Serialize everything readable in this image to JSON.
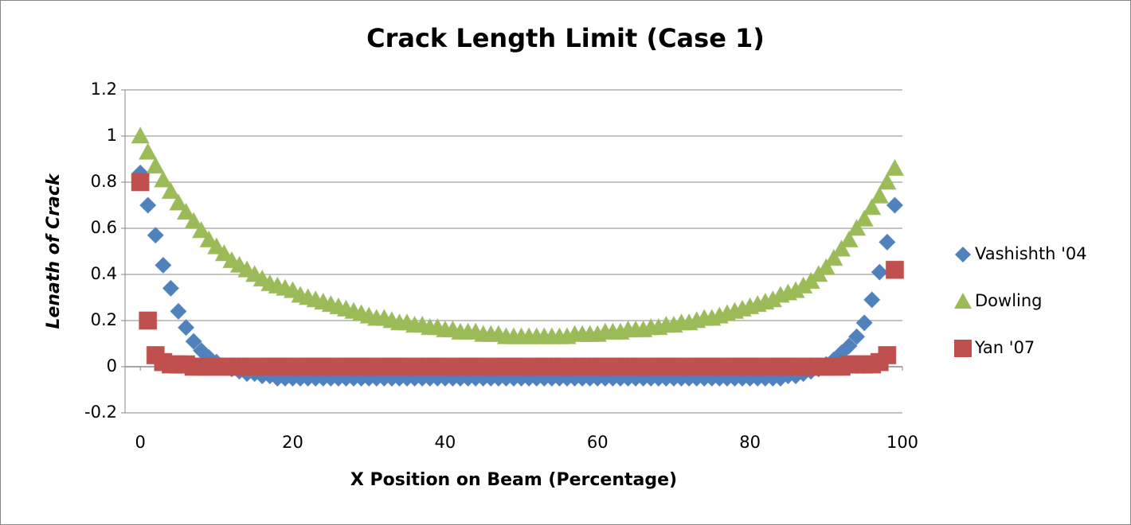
{
  "chart_data": {
    "type": "scatter",
    "title": "Crack Length Limit (Case 1)",
    "x_label": "X Position on Beam (Percentage)",
    "y_label": "Lenath of Crack",
    "xlim": [
      -2,
      100
    ],
    "xticks": [
      0,
      20,
      40,
      60,
      80,
      100
    ],
    "ylim": [
      -0.2,
      1.2
    ],
    "yticks": [
      -0.2,
      0,
      0.2,
      0.4,
      0.6,
      0.8,
      1,
      1.2
    ],
    "grid": true,
    "legend": "right",
    "x": [
      0,
      1,
      2,
      3,
      4,
      5,
      6,
      7,
      8,
      9,
      10,
      11,
      12,
      13,
      14,
      15,
      16,
      17,
      18,
      19,
      20,
      21,
      22,
      23,
      24,
      25,
      26,
      27,
      28,
      29,
      30,
      31,
      32,
      33,
      34,
      35,
      36,
      37,
      38,
      39,
      40,
      41,
      42,
      43,
      44,
      45,
      46,
      47,
      48,
      49,
      50,
      51,
      52,
      53,
      54,
      55,
      56,
      57,
      58,
      59,
      60,
      61,
      62,
      63,
      64,
      65,
      66,
      67,
      68,
      69,
      70,
      71,
      72,
      73,
      74,
      75,
      76,
      77,
      78,
      79,
      80,
      81,
      82,
      83,
      84,
      85,
      86,
      87,
      88,
      89,
      90,
      91,
      92,
      93,
      94,
      95,
      96,
      97,
      98,
      99
    ],
    "series": [
      {
        "name": "Vashishth '04",
        "color": "#4f81bd",
        "marker": "diamond",
        "values": [
          0.84,
          0.7,
          0.57,
          0.44,
          0.34,
          0.24,
          0.17,
          0.11,
          0.07,
          0.04,
          0.02,
          0.0,
          -0.01,
          -0.02,
          -0.03,
          -0.03,
          -0.04,
          -0.04,
          -0.05,
          -0.05,
          -0.05,
          -0.05,
          -0.05,
          -0.05,
          -0.05,
          -0.05,
          -0.05,
          -0.05,
          -0.05,
          -0.05,
          -0.05,
          -0.05,
          -0.05,
          -0.05,
          -0.05,
          -0.05,
          -0.05,
          -0.05,
          -0.05,
          -0.05,
          -0.05,
          -0.05,
          -0.05,
          -0.05,
          -0.05,
          -0.05,
          -0.05,
          -0.05,
          -0.05,
          -0.05,
          -0.05,
          -0.05,
          -0.05,
          -0.05,
          -0.05,
          -0.05,
          -0.05,
          -0.05,
          -0.05,
          -0.05,
          -0.05,
          -0.05,
          -0.05,
          -0.05,
          -0.05,
          -0.05,
          -0.05,
          -0.05,
          -0.05,
          -0.05,
          -0.05,
          -0.05,
          -0.05,
          -0.05,
          -0.05,
          -0.05,
          -0.05,
          -0.05,
          -0.05,
          -0.05,
          -0.05,
          -0.05,
          -0.05,
          -0.05,
          -0.05,
          -0.04,
          -0.04,
          -0.03,
          -0.02,
          -0.01,
          0.01,
          0.03,
          0.06,
          0.09,
          0.13,
          0.19,
          0.29,
          0.41,
          0.54,
          0.7
        ]
      },
      {
        "name": "Dowling",
        "color": "#9bbb59",
        "marker": "triangle",
        "values": [
          1.0,
          0.93,
          0.87,
          0.81,
          0.76,
          0.71,
          0.67,
          0.63,
          0.59,
          0.55,
          0.52,
          0.49,
          0.46,
          0.44,
          0.42,
          0.4,
          0.38,
          0.36,
          0.35,
          0.34,
          0.33,
          0.31,
          0.3,
          0.29,
          0.28,
          0.27,
          0.26,
          0.25,
          0.24,
          0.23,
          0.22,
          0.21,
          0.21,
          0.2,
          0.19,
          0.19,
          0.18,
          0.18,
          0.17,
          0.17,
          0.16,
          0.16,
          0.15,
          0.15,
          0.15,
          0.14,
          0.14,
          0.14,
          0.13,
          0.13,
          0.13,
          0.13,
          0.13,
          0.13,
          0.13,
          0.13,
          0.13,
          0.14,
          0.14,
          0.14,
          0.14,
          0.15,
          0.15,
          0.15,
          0.16,
          0.16,
          0.16,
          0.17,
          0.17,
          0.18,
          0.18,
          0.19,
          0.19,
          0.2,
          0.21,
          0.21,
          0.22,
          0.23,
          0.24,
          0.25,
          0.26,
          0.27,
          0.28,
          0.29,
          0.31,
          0.32,
          0.33,
          0.35,
          0.37,
          0.4,
          0.43,
          0.47,
          0.51,
          0.55,
          0.6,
          0.64,
          0.69,
          0.74,
          0.8,
          0.86
        ]
      },
      {
        "name": "Yan '07",
        "color": "#c0504d",
        "marker": "square",
        "values": [
          0.8,
          0.2,
          0.05,
          0.02,
          0.01,
          0.01,
          0.01,
          0,
          0,
          0,
          0,
          0,
          0,
          0,
          0,
          0,
          0,
          0,
          0,
          0,
          0,
          0,
          0,
          0,
          0,
          0,
          0,
          0,
          0,
          0,
          0,
          0,
          0,
          0,
          0,
          0,
          0,
          0,
          0,
          0,
          0,
          0,
          0,
          0,
          0,
          0,
          0,
          0,
          0,
          0,
          0,
          0,
          0,
          0,
          0,
          0,
          0,
          0,
          0,
          0,
          0,
          0,
          0,
          0,
          0,
          0,
          0,
          0,
          0,
          0,
          0,
          0,
          0,
          0,
          0,
          0,
          0,
          0,
          0,
          0,
          0,
          0,
          0,
          0,
          0,
          0,
          0,
          0,
          0,
          0,
          0,
          0,
          0,
          0.01,
          0.01,
          0.01,
          0.01,
          0.02,
          0.05,
          0.42
        ]
      }
    ]
  }
}
